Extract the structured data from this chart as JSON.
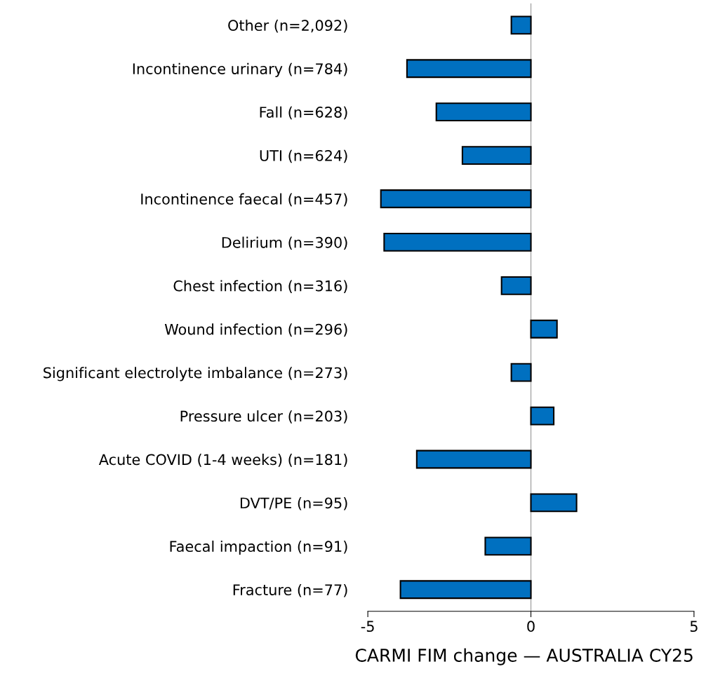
{
  "chart_data": {
    "type": "bar",
    "orientation": "horizontal",
    "xlabel": "CARMI FIM change — AUSTRALIA CY25",
    "categories": [
      "Other (n=2,092)",
      "Incontinence urinary (n=784)",
      "Fall (n=628)",
      "UTI (n=624)",
      "Incontinence faecal (n=457)",
      "Delirium (n=390)",
      "Chest infection (n=316)",
      "Wound infection (n=296)",
      "Significant electrolyte imbalance (n=273)",
      "Pressure ulcer (n=203)",
      "Acute COVID (1-4 weeks) (n=181)",
      "DVT/PE (n=95)",
      "Faecal impaction (n=91)",
      "Fracture (n=77)"
    ],
    "values": [
      -0.6,
      -3.8,
      -2.9,
      -2.1,
      -4.6,
      -4.5,
      -0.9,
      0.8,
      -0.6,
      0.7,
      -3.5,
      1.4,
      -1.4,
      -4.0
    ],
    "color": "#0070c0",
    "xlim": [
      -5,
      5
    ],
    "xticks": [
      -5,
      0,
      5
    ],
    "ref_lines": [
      {
        "axis": "x",
        "value": 0,
        "color": "#a6a6a6"
      }
    ],
    "grid": false,
    "legend": false
  }
}
